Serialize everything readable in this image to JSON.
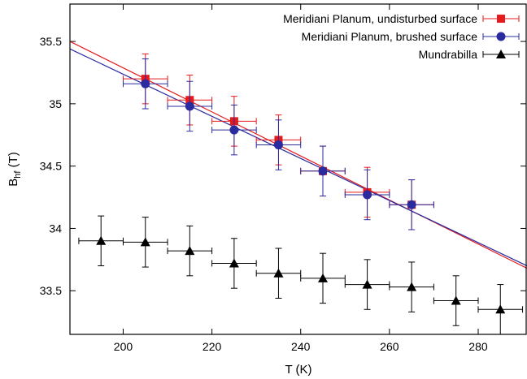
{
  "chart_data": {
    "type": "scatter",
    "xlabel": "T (K)",
    "ylabel_main": "B",
    "ylabel_sub": "hf",
    "ylabel_tail": " (T)",
    "xlim": [
      188,
      291
    ],
    "ylim": [
      33.15,
      35.8
    ],
    "x_ticks": [
      200,
      220,
      240,
      260,
      280
    ],
    "y_ticks": [
      33.5,
      34,
      34.5,
      35,
      35.5
    ],
    "legend_position": "top-right",
    "series": [
      {
        "name": "Meridiani Planum, undisturbed surface",
        "marker": "square",
        "color": "#e41a1c",
        "x": [
          205,
          215,
          225,
          235,
          245,
          255,
          265
        ],
        "y": [
          35.2,
          35.03,
          34.86,
          34.71,
          34.46,
          34.29,
          34.19
        ],
        "xerr": 5,
        "yerr": 0.2,
        "fit": {
          "x": [
            188,
            291
          ],
          "y": [
            35.5,
            33.68
          ]
        }
      },
      {
        "name": "Meridiani Planum, brushed surface",
        "marker": "circle",
        "color": "#2b2ba0",
        "x": [
          205,
          215,
          225,
          235,
          245,
          255,
          265
        ],
        "y": [
          35.16,
          34.98,
          34.79,
          34.67,
          34.46,
          34.27,
          34.19
        ],
        "xerr": 5,
        "yerr": 0.2,
        "fit": {
          "x": [
            188,
            291
          ],
          "y": [
            35.44,
            33.7
          ]
        }
      },
      {
        "name": "Mundrabilla",
        "marker": "triangle",
        "color": "#000000",
        "x": [
          195,
          205,
          215,
          225,
          235,
          245,
          255,
          265,
          275,
          285
        ],
        "y": [
          33.9,
          33.89,
          33.82,
          33.72,
          33.64,
          33.6,
          33.55,
          33.53,
          33.42,
          33.35
        ],
        "xerr": 5,
        "yerr": 0.2
      }
    ]
  }
}
